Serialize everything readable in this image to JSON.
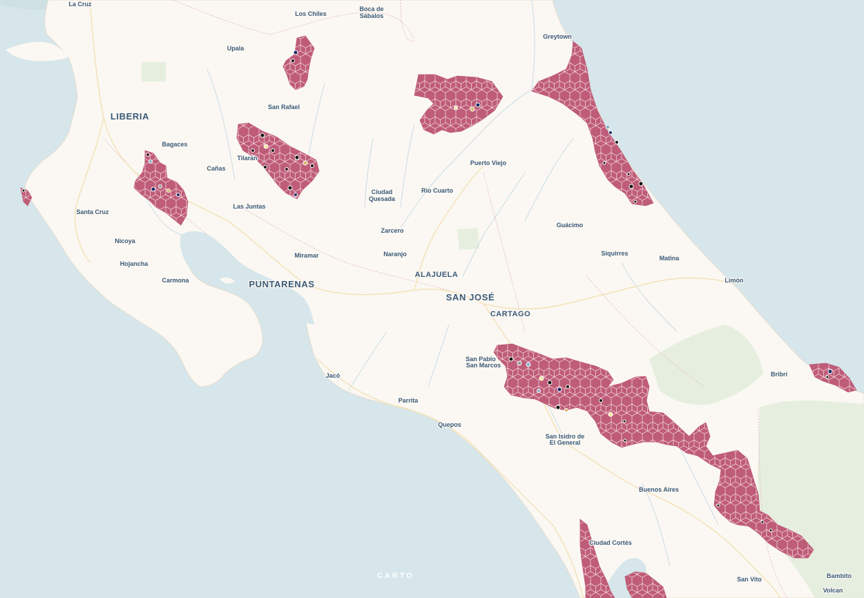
{
  "map": {
    "attribution_logo": "CARTO",
    "colors": {
      "water": "#d6e6ea",
      "land": "#fbf8f3",
      "hex_fill": "#bf5c78",
      "hex_stroke": "#f1d3dc",
      "park": "#e3eddd"
    },
    "place_labels": [
      {
        "text": "La Cruz",
        "size": "small"
      },
      {
        "text": "Los Chiles",
        "size": "small"
      },
      {
        "text": "Boca de",
        "size": "small"
      },
      {
        "text": "Sábalos",
        "size": "small"
      },
      {
        "text": "Greytown",
        "size": "small"
      },
      {
        "text": "Upala",
        "size": "small"
      },
      {
        "text": "San Rafael",
        "size": "small"
      },
      {
        "text": "LIBERIA",
        "size": "big"
      },
      {
        "text": "Bagaces",
        "size": "small"
      },
      {
        "text": "Tilarán",
        "size": "small"
      },
      {
        "text": "Cañas",
        "size": "small"
      },
      {
        "text": "Puerto Viejo",
        "size": "small"
      },
      {
        "text": "Ciudad",
        "size": "small"
      },
      {
        "text": "Quesada",
        "size": "small"
      },
      {
        "text": "Rio Cuarto",
        "size": "small"
      },
      {
        "text": "Santa Cruz",
        "size": "small"
      },
      {
        "text": "Las Juntas",
        "size": "small"
      },
      {
        "text": "Guácimo",
        "size": "small"
      },
      {
        "text": "Zarcero",
        "size": "small"
      },
      {
        "text": "Nicoya",
        "size": "small"
      },
      {
        "text": "Siquirres",
        "size": "small"
      },
      {
        "text": "Naranjo",
        "size": "small"
      },
      {
        "text": "Miramar",
        "size": "small"
      },
      {
        "text": "Matina",
        "size": "small"
      },
      {
        "text": "Hojancha",
        "size": "small"
      },
      {
        "text": "ALAJUELA",
        "size": "mid"
      },
      {
        "text": "Limón",
        "size": "small"
      },
      {
        "text": "Carmona",
        "size": "small"
      },
      {
        "text": "PUNTARENAS",
        "size": "big"
      },
      {
        "text": "SAN JOSÉ",
        "size": "big"
      },
      {
        "text": "CARTAGO",
        "size": "mid"
      },
      {
        "text": "San Pablo",
        "size": "small"
      },
      {
        "text": "San Marcos",
        "size": "small"
      },
      {
        "text": "Bribrí",
        "size": "small"
      },
      {
        "text": "Jacó",
        "size": "small"
      },
      {
        "text": "Parrita",
        "size": "small"
      },
      {
        "text": "Quepos",
        "size": "small"
      },
      {
        "text": "San Isidro de",
        "size": "small"
      },
      {
        "text": "El General",
        "size": "small"
      },
      {
        "text": "Buenos Aires",
        "size": "small"
      },
      {
        "text": "Ciudad Cortés",
        "size": "small"
      },
      {
        "text": "San Vito",
        "size": "small"
      },
      {
        "text": "Bambito",
        "size": "small"
      },
      {
        "text": "Volcan",
        "size": "small"
      }
    ]
  }
}
